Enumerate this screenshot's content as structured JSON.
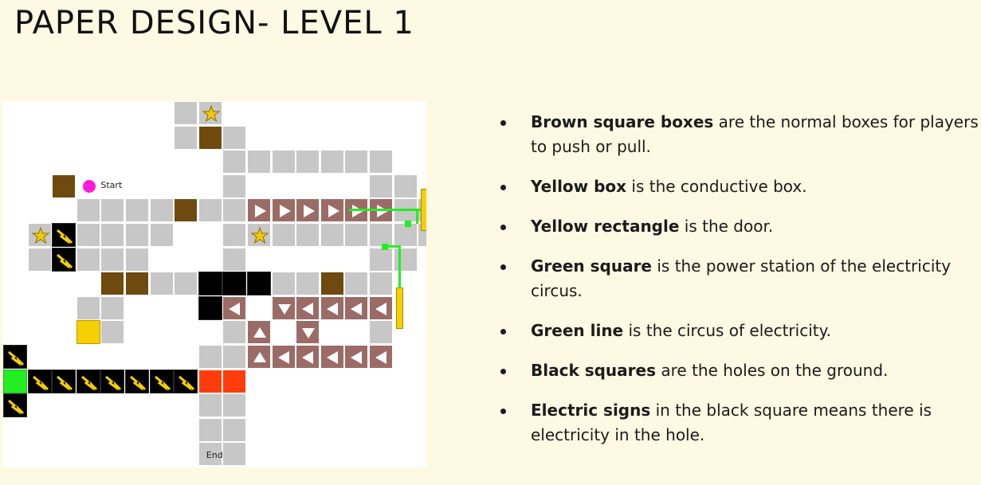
{
  "title": "PAPER DESIGN- LEVEL 1",
  "map": {
    "start_label": "Start",
    "end_label": "End",
    "colors": {
      "floor": "#c7c7c7",
      "hole": "#000000",
      "brown_box": "#6e4a0f",
      "yellow_box": "#f6d000",
      "green_station": "#22ee22",
      "end_tile": "#ff3d0c",
      "conveyor": "#9b6b66",
      "start_marker": "#ff1ad9",
      "background": "#fdf9e3"
    }
  },
  "legend": [
    {
      "bold": "Brown square boxes",
      "rest": " are the normal boxes for players to push or pull."
    },
    {
      "bold": "Yellow box",
      "rest": " is the conductive box."
    },
    {
      "bold": "Yellow rectangle",
      "rest": " is the door."
    },
    {
      "bold": "Green square",
      "rest": " is the power station of the electricity circus."
    },
    {
      "bold": "Green line",
      "rest": " is the circus of electricity."
    },
    {
      "bold": "Black squares",
      "rest": " are the holes on the ground."
    },
    {
      "bold": "Electric signs",
      "rest": " in the black square means there is electricity in the hole."
    }
  ]
}
